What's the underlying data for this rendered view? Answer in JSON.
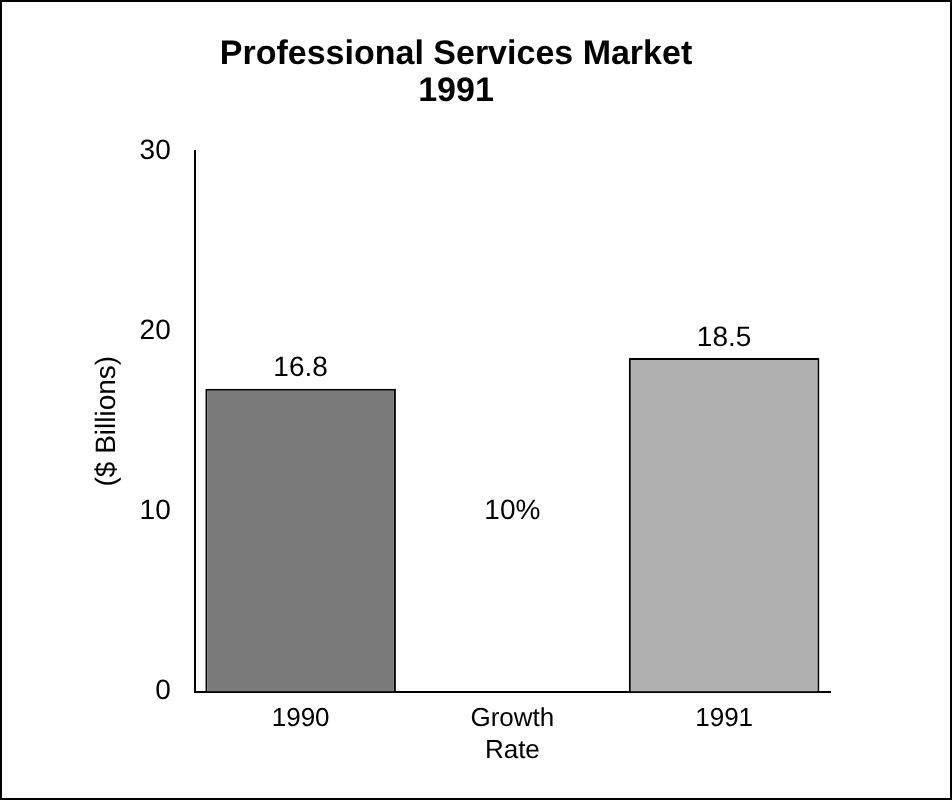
{
  "chart_data": {
    "type": "bar",
    "title": "Professional Services Market\n1991",
    "ylabel": "($ Billions)",
    "categories": [
      "1990",
      "Growth Rate",
      "1991"
    ],
    "values": [
      16.8,
      null,
      18.5
    ],
    "colors": [
      "#7a7a7a",
      null,
      "#b0b0b0"
    ],
    "ylim": [
      0,
      30
    ],
    "yticks": [
      0,
      10,
      20,
      30
    ],
    "grid": false,
    "legend": false,
    "data_labels": true,
    "annotations": [
      "10%"
    ]
  }
}
